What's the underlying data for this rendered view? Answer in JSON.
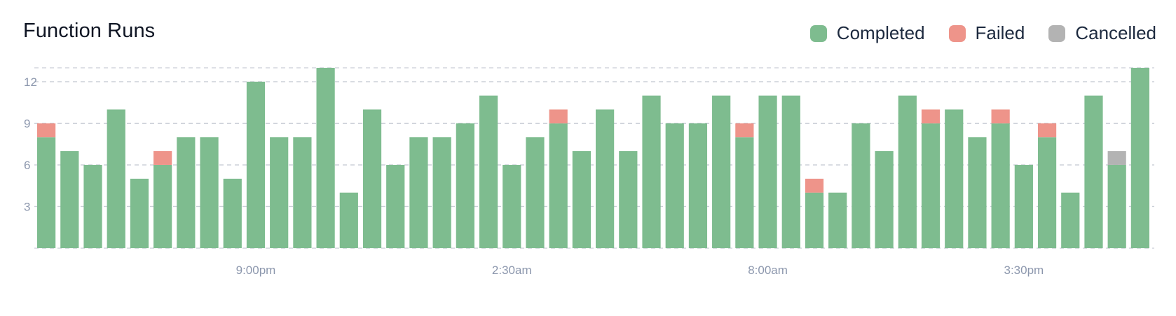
{
  "chart_data": {
    "type": "bar",
    "stacked": true,
    "title": "Function Runs",
    "xlabel": "",
    "ylabel": "",
    "ylim": [
      0,
      13
    ],
    "yticks": [
      3,
      6,
      9,
      12
    ],
    "grid": true,
    "legend_position": "top-right",
    "x_tick_labels": [
      {
        "index": 9,
        "label": "9:00pm"
      },
      {
        "index": 20,
        "label": "2:30am"
      },
      {
        "index": 31,
        "label": "8:00am"
      },
      {
        "index": 42,
        "label": "3:30pm"
      }
    ],
    "series": [
      {
        "name": "Completed",
        "color": "#7ebc8f",
        "values": [
          8,
          7,
          6,
          10,
          5,
          6,
          8,
          8,
          5,
          12,
          8,
          8,
          13,
          4,
          10,
          6,
          8,
          8,
          9,
          11,
          6,
          8,
          9,
          7,
          10,
          7,
          11,
          9,
          9,
          11,
          8,
          11,
          11,
          4,
          4,
          9,
          7,
          11,
          9,
          10,
          8,
          9,
          6,
          8,
          4,
          11,
          6,
          13
        ]
      },
      {
        "name": "Failed",
        "color": "#ee948a",
        "values": [
          1,
          0,
          0,
          0,
          0,
          1,
          0,
          0,
          0,
          0,
          0,
          0,
          0,
          0,
          0,
          0,
          0,
          0,
          0,
          0,
          0,
          0,
          1,
          0,
          0,
          0,
          0,
          0,
          0,
          0,
          1,
          0,
          0,
          1,
          0,
          0,
          0,
          0,
          1,
          0,
          0,
          1,
          0,
          1,
          0,
          0,
          0,
          0
        ]
      },
      {
        "name": "Cancelled",
        "color": "#b3b3b3",
        "values": [
          0,
          0,
          0,
          0,
          0,
          0,
          0,
          0,
          0,
          0,
          0,
          0,
          0,
          0,
          0,
          0,
          0,
          0,
          0,
          0,
          0,
          0,
          0,
          0,
          0,
          0,
          0,
          0,
          0,
          0,
          0,
          0,
          0,
          0,
          0,
          0,
          0,
          0,
          0,
          0,
          0,
          0,
          0,
          0,
          0,
          0,
          1,
          0
        ]
      }
    ]
  },
  "colors": {
    "grid": "#c9ced6",
    "tick_text": "#8c97ad",
    "title_text": "#0f1523"
  }
}
